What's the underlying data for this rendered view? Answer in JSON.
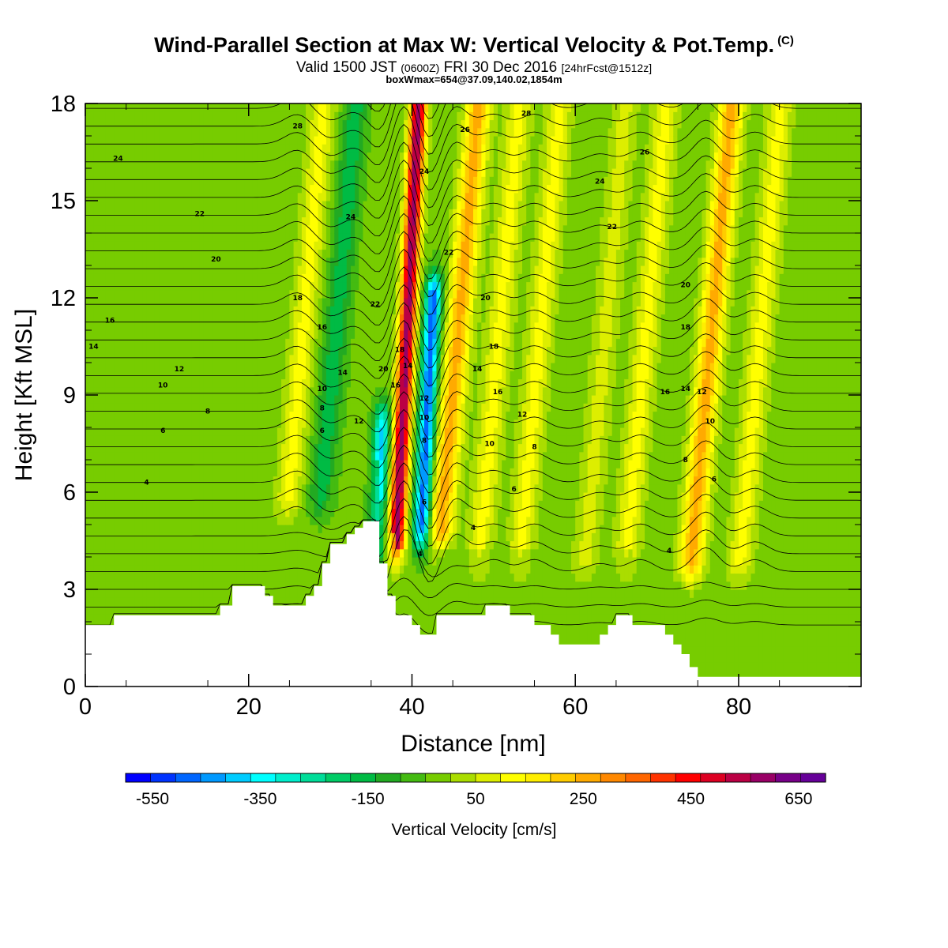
{
  "header": {
    "title": "Wind-Parallel Section at Max W: Vertical Velocity & Pot.Temp.",
    "title_mark": "(C)",
    "valid_pre": "Valid 1500 JST",
    "valid_utc": "(0600Z)",
    "valid_date": "FRI 30 Dec 2016",
    "forecast": "[24hrFcst@1512z]",
    "boxinfo": "boxWmax=654@37.09,140.02,1854m"
  },
  "chart_data": {
    "type": "heatmap",
    "title": "Wind-Parallel Section at Max W: Vertical Velocity & Pot.Temp.",
    "xlabel": "Distance [nm]",
    "ylabel": "Height [Kft MSL]",
    "xlim": [
      0,
      95
    ],
    "ylim": [
      0,
      18
    ],
    "x_ticks": [
      0,
      20,
      40,
      60,
      80
    ],
    "x_tick_labels": [
      "0",
      "20",
      "40",
      "60",
      "80"
    ],
    "y_ticks": [
      0,
      3,
      6,
      9,
      12,
      15,
      18
    ],
    "y_tick_labels": [
      "0",
      "3",
      "6",
      "9",
      "12",
      "15",
      "18"
    ],
    "colorbar": {
      "label": "Vertical Velocity [cm/s]",
      "min": -600,
      "max": 700,
      "step": 50,
      "tick_values": [
        -550,
        -350,
        -150,
        50,
        250,
        450,
        650
      ],
      "tick_labels": [
        "-550",
        "-350",
        "-150",
        "50",
        "250",
        "450",
        "650"
      ],
      "colors": [
        "#0000ff",
        "#0033ff",
        "#0066ff",
        "#0099ff",
        "#00ccff",
        "#00ffff",
        "#00eecc",
        "#00dd99",
        "#00cc66",
        "#00bb44",
        "#22aa22",
        "#44bb11",
        "#77cc00",
        "#aadd00",
        "#ddee00",
        "#ffff00",
        "#ffee00",
        "#ffcc00",
        "#ffaa00",
        "#ff8800",
        "#ff6600",
        "#ff3300",
        "#ff0000",
        "#dd0022",
        "#bb0044",
        "#990066",
        "#770088",
        "#660099"
      ]
    },
    "vertical_velocity_features": [
      {
        "x": 39,
        "y_range": [
          4.5,
          18
        ],
        "w": 650,
        "description": "updraft"
      },
      {
        "x": 42,
        "y_range": [
          5,
          12
        ],
        "w": -500,
        "description": "downdraft"
      },
      {
        "x": 36.5,
        "y_range": [
          4,
          8
        ],
        "w": -380,
        "description": "downdraft"
      },
      {
        "x": 26,
        "y_range": [
          6,
          18
        ],
        "w": 150
      },
      {
        "x": 30,
        "y_range": [
          6,
          18
        ],
        "w": -150
      },
      {
        "x": 45,
        "y_range": [
          5,
          18
        ],
        "w": 300
      },
      {
        "x": 50,
        "y_range": [
          4,
          18
        ],
        "w": 150
      },
      {
        "x": 55,
        "y_range": [
          4,
          18
        ],
        "w": 150
      },
      {
        "x": 63,
        "y_range": [
          4,
          18
        ],
        "w": 100
      },
      {
        "x": 68,
        "y_range": [
          4,
          18
        ],
        "w": 150
      },
      {
        "x": 76,
        "y_range": [
          4,
          18
        ],
        "w": 300
      },
      {
        "x": 82,
        "y_range": [
          4,
          18
        ],
        "w": 150
      }
    ],
    "terrain": {
      "x": [
        0,
        3.5,
        3.5,
        16.5,
        16.5,
        18,
        18,
        22,
        22,
        23,
        23,
        24,
        24,
        27,
        27,
        28,
        28,
        29,
        29,
        30,
        30,
        32,
        32,
        33,
        33,
        34,
        34,
        36,
        36,
        37,
        37,
        38,
        38,
        40,
        40,
        41,
        41,
        43,
        43,
        49,
        49,
        50,
        50,
        52,
        52,
        55,
        55,
        57,
        57,
        58,
        58,
        59,
        59,
        63,
        63,
        64,
        64,
        65,
        65,
        67,
        67,
        71,
        71,
        72,
        72,
        73,
        73,
        74,
        74,
        75,
        75,
        76,
        76,
        78,
        78,
        80,
        80,
        95
      ],
      "h": [
        1.9,
        1.9,
        2.2,
        2.2,
        2.5,
        2.5,
        3.1,
        3.1,
        2.8,
        2.8,
        2.5,
        2.5,
        2.5,
        2.5,
        2.8,
        2.8,
        3.1,
        3.1,
        3.8,
        3.8,
        4.4,
        4.4,
        4.7,
        4.7,
        4.9,
        4.9,
        5.1,
        5.1,
        3.8,
        3.8,
        2.8,
        2.8,
        2.2,
        2.2,
        1.9,
        1.9,
        1.6,
        1.6,
        2.2,
        2.2,
        2.5,
        2.5,
        2.5,
        2.5,
        2.2,
        2.2,
        1.9,
        1.9,
        1.6,
        1.6,
        1.3,
        1.3,
        1.3,
        1.3,
        1.6,
        1.6,
        1.9,
        1.9,
        2.2,
        2.2,
        1.9,
        1.9,
        1.6,
        1.6,
        1.3,
        1.3,
        1.0,
        1.0,
        0.6,
        0.6,
        0.3,
        0.3,
        0.3,
        0.3,
        0.3,
        0.3,
        0.3,
        0.3
      ]
    },
    "potential_temperature_contours": {
      "unit": "C",
      "interval": 1,
      "labels": [
        {
          "v": "28",
          "x": 26,
          "y": 17.3
        },
        {
          "v": "24",
          "x": 4,
          "y": 16.3
        },
        {
          "v": "22",
          "x": 14,
          "y": 14.6
        },
        {
          "v": "20",
          "x": 16,
          "y": 13.2
        },
        {
          "v": "24",
          "x": 32.5,
          "y": 14.5
        },
        {
          "v": "18",
          "x": 26,
          "y": 12.0
        },
        {
          "v": "16",
          "x": 3,
          "y": 11.3
        },
        {
          "v": "14",
          "x": 1,
          "y": 10.5
        },
        {
          "v": "12",
          "x": 11.5,
          "y": 9.8
        },
        {
          "v": "10",
          "x": 9.5,
          "y": 9.3
        },
        {
          "v": "8",
          "x": 15,
          "y": 8.5
        },
        {
          "v": "6",
          "x": 9.5,
          "y": 7.9
        },
        {
          "v": "4",
          "x": 7.5,
          "y": 6.3
        },
        {
          "v": "16",
          "x": 29,
          "y": 11.1
        },
        {
          "v": "14",
          "x": 31.5,
          "y": 9.7
        },
        {
          "v": "10",
          "x": 29,
          "y": 9.2
        },
        {
          "v": "8",
          "x": 29,
          "y": 8.6
        },
        {
          "v": "6",
          "x": 29,
          "y": 7.9
        },
        {
          "v": "12",
          "x": 33.5,
          "y": 8.2
        },
        {
          "v": "22",
          "x": 35.5,
          "y": 11.8
        },
        {
          "v": "20",
          "x": 36.5,
          "y": 9.8
        },
        {
          "v": "18",
          "x": 38.5,
          "y": 10.4
        },
        {
          "v": "16",
          "x": 38,
          "y": 9.3
        },
        {
          "v": "14",
          "x": 39.5,
          "y": 9.9
        },
        {
          "v": "12",
          "x": 41.5,
          "y": 8.9
        },
        {
          "v": "10",
          "x": 41.5,
          "y": 8.3
        },
        {
          "v": "8",
          "x": 41.5,
          "y": 7.6
        },
        {
          "v": "6",
          "x": 41.5,
          "y": 5.7
        },
        {
          "v": "4",
          "x": 41,
          "y": 4.1
        },
        {
          "v": "24",
          "x": 41.5,
          "y": 15.9
        },
        {
          "v": "26",
          "x": 46.5,
          "y": 17.2
        },
        {
          "v": "22",
          "x": 44.5,
          "y": 13.4
        },
        {
          "v": "20",
          "x": 49,
          "y": 12.0
        },
        {
          "v": "18",
          "x": 50,
          "y": 10.5
        },
        {
          "v": "14",
          "x": 48,
          "y": 9.8
        },
        {
          "v": "16",
          "x": 50.5,
          "y": 9.1
        },
        {
          "v": "12",
          "x": 53.5,
          "y": 8.4
        },
        {
          "v": "10",
          "x": 49.5,
          "y": 7.5
        },
        {
          "v": "8",
          "x": 55,
          "y": 7.4
        },
        {
          "v": "6",
          "x": 52.5,
          "y": 6.1
        },
        {
          "v": "4",
          "x": 47.5,
          "y": 4.9
        },
        {
          "v": "28",
          "x": 54,
          "y": 17.7
        },
        {
          "v": "26",
          "x": 68.5,
          "y": 16.5
        },
        {
          "v": "24",
          "x": 63,
          "y": 15.6
        },
        {
          "v": "22",
          "x": 64.5,
          "y": 14.2
        },
        {
          "v": "20",
          "x": 73.5,
          "y": 12.4
        },
        {
          "v": "18",
          "x": 73.5,
          "y": 11.1
        },
        {
          "v": "16",
          "x": 71,
          "y": 9.1
        },
        {
          "v": "14",
          "x": 73.5,
          "y": 9.2
        },
        {
          "v": "12",
          "x": 75.5,
          "y": 9.1
        },
        {
          "v": "10",
          "x": 76.5,
          "y": 8.2
        },
        {
          "v": "8",
          "x": 73.5,
          "y": 7.0
        },
        {
          "v": "6",
          "x": 77,
          "y": 6.4
        },
        {
          "v": "4",
          "x": 71.5,
          "y": 4.2
        }
      ]
    }
  }
}
